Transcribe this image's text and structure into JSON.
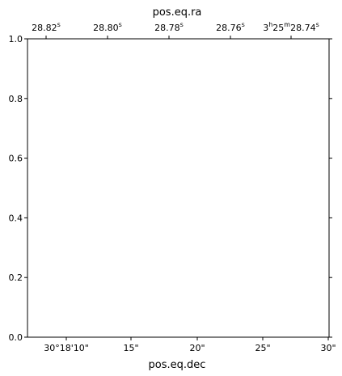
{
  "chart_data": {
    "type": "scatter",
    "top_axis": {
      "label": "pos.eq.ra",
      "ticks": [
        {
          "prefix": "28.82",
          "sup": "s"
        },
        {
          "prefix": "28.80",
          "sup": "s"
        },
        {
          "prefix": "28.78",
          "sup": "s"
        },
        {
          "prefix": "28.76",
          "sup": "s"
        },
        {
          "prefix": "3",
          "sup": "h",
          "mid": "25",
          "sup2": "m",
          "rest": "28.74",
          "sup3": "s"
        }
      ]
    },
    "bottom_axis": {
      "label": "pos.eq.dec",
      "ticks": [
        "30°18'10\"",
        "15\"",
        "20\"",
        "25\"",
        "30\""
      ]
    },
    "left_axis": {
      "ylim": [
        0,
        1
      ],
      "ticks": [
        "0.0",
        "0.2",
        "0.4",
        "0.6",
        "0.8",
        "1.0"
      ]
    },
    "series": [],
    "grid": false
  }
}
